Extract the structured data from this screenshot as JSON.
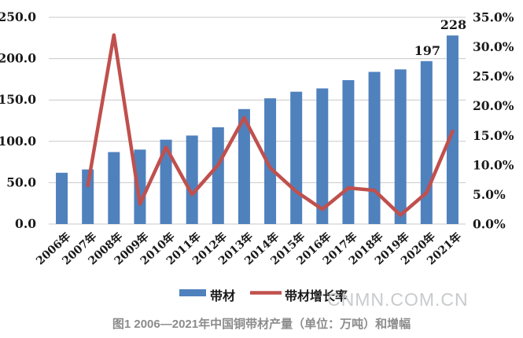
{
  "watermark": "CNMN.COM.CN",
  "caption": "图1 2006—2021年中国铜带材产量（单位：万吨）和增幅",
  "colors": {
    "bar": "#4F81BD",
    "line": "#C0504D",
    "grid": "#C9C9C9",
    "axis_text": "#1a1a1a",
    "caption_text": "#8C8C8C",
    "watermark_text": "#C8CBCE"
  },
  "chart_data": {
    "type": "bar",
    "title": "",
    "xlabel": "",
    "ylabel": "",
    "grid": true,
    "legend_position": "bottom",
    "categories": [
      "2006年",
      "2007年",
      "2008年",
      "2009年",
      "2010年",
      "2011年",
      "2012年",
      "2013年",
      "2014年",
      "2015年",
      "2016年",
      "2017年",
      "2018年",
      "2019年",
      "2020年",
      "2021年"
    ],
    "series": [
      {
        "name": "带材",
        "type": "bar",
        "axis": "left",
        "values": [
          62,
          66,
          87,
          90,
          102,
          107,
          117,
          139,
          152,
          160,
          164,
          174,
          184,
          187,
          197,
          228
        ]
      },
      {
        "name": "带材增长率",
        "type": "line",
        "axis": "right",
        "values": [
          null,
          6.5,
          32.0,
          3.4,
          13.0,
          5.0,
          10.0,
          18.0,
          9.5,
          5.5,
          2.5,
          6.1,
          5.7,
          1.5,
          5.3,
          15.7
        ]
      }
    ],
    "left_axis": {
      "min": 0,
      "max": 250,
      "step": 50,
      "tick_labels": [
        "0.0",
        "50.0",
        "100.0",
        "150.0",
        "200.0",
        "250.0"
      ]
    },
    "right_axis": {
      "min": 0,
      "max": 35,
      "step": 5,
      "tick_labels": [
        "0.0%",
        "5.0%",
        "10.0%",
        "15.0%",
        "20.0%",
        "25.0%",
        "30.0%",
        "35.0%"
      ]
    },
    "data_labels": [
      {
        "category": "2020年",
        "text": "197"
      },
      {
        "category": "2021年",
        "text": "228"
      }
    ],
    "legend": [
      {
        "label": "带材",
        "swatch": "bar"
      },
      {
        "label": "带材增长率",
        "swatch": "line"
      }
    ]
  }
}
